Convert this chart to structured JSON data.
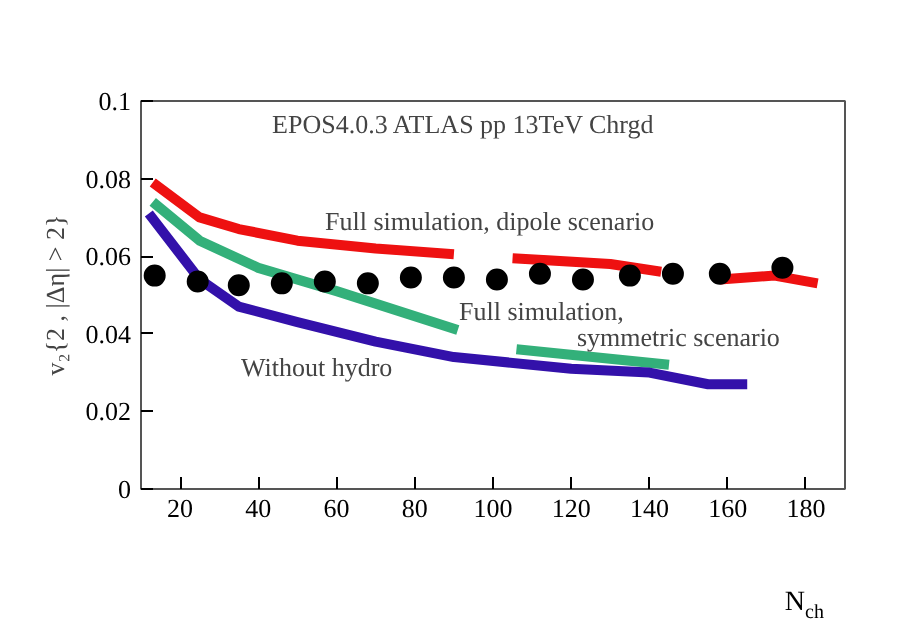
{
  "chart_data": {
    "type": "line",
    "title": "EPOS4.0.3    ATLAS    pp 13TeV    Chrgd",
    "xlabel": "N$_{ch}$",
    "ylabel": "v₂{2 , |Δη| > 2}",
    "series": [
      {
        "color": "#ee1111",
        "x": [
          13,
          25,
          35,
          50,
          70,
          90,
          97,
          105,
          130,
          143,
          150,
          158,
          172,
          183
        ],
        "values": [
          0.079,
          0.07,
          0.067,
          0.064,
          0.062,
          0.0605,
          null,
          0.0595,
          0.058,
          0.056,
          null,
          0.054,
          0.055,
          0.053
        ]
      },
      {
        "color": "#33b07a",
        "x": [
          13,
          25,
          40,
          60,
          91,
          98,
          106,
          145
        ],
        "values": [
          0.074,
          0.064,
          0.057,
          0.051,
          0.041,
          null,
          0.036,
          0.032
        ]
      },
      {
        "color": "#3311aa",
        "x": [
          12,
          25,
          35,
          50,
          70,
          90,
          120,
          140,
          155,
          165
        ],
        "values": [
          0.071,
          0.054,
          0.047,
          0.043,
          0.038,
          0.034,
          0.031,
          0.03,
          0.027,
          0.027
        ]
      },
      {
        "type": "scatter",
        "color": "#000000",
        "marker": "circle",
        "x": [
          13.5,
          24.5,
          35,
          46,
          57,
          68,
          79,
          90,
          101,
          112,
          123,
          135,
          146,
          158,
          174
        ],
        "values": [
          0.055,
          0.0535,
          0.0525,
          0.053,
          0.0535,
          0.053,
          0.0545,
          0.0545,
          0.054,
          0.0555,
          0.054,
          0.055,
          0.0555,
          0.0555,
          0.057
        ]
      }
    ],
    "annotations": [
      "Full simulation, dipole scenario",
      "Full simulation,",
      "symmetric scenario",
      "Without hydro"
    ],
    "xlim": [
      10,
      190
    ],
    "xticks": [
      20,
      40,
      60,
      80,
      100,
      120,
      140,
      160,
      180
    ],
    "ylim": [
      0,
      0.1
    ],
    "yticks": [
      0,
      0.02,
      0.04,
      0.06,
      0.08,
      0.1
    ],
    "grid": false,
    "line_style": "solid"
  }
}
